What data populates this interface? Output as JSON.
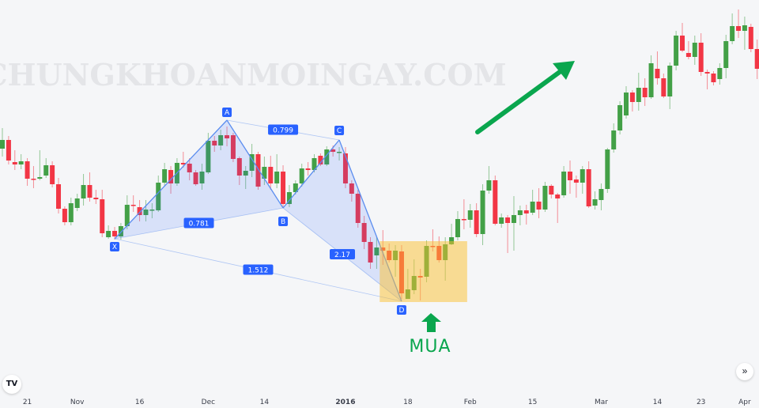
{
  "chart_data": {
    "type": "candlestick",
    "title": "",
    "watermark": "CHUNGKHOANMOINGAY.COM",
    "colors": {
      "up": "#43a047",
      "down": "#f23645",
      "pattern": "#5b8def",
      "pattern_fill": "#2962ff",
      "zone": "#fbc02d",
      "buy": "#0aa64e"
    },
    "x_ticks": [
      {
        "bar": 4,
        "label": "21"
      },
      {
        "bar": 12,
        "label": "Nov"
      },
      {
        "bar": 22,
        "label": "16"
      },
      {
        "bar": 33,
        "label": "Dec"
      },
      {
        "bar": 42,
        "label": "14"
      },
      {
        "bar": 55,
        "label": "2016",
        "bold": true
      },
      {
        "bar": 65,
        "label": "18"
      },
      {
        "bar": 75,
        "label": "Feb"
      },
      {
        "bar": 85,
        "label": "15"
      },
      {
        "bar": 96,
        "label": "Mar"
      },
      {
        "bar": 105,
        "label": "14"
      },
      {
        "bar": 112,
        "label": "23"
      },
      {
        "bar": 119,
        "label": "Apr"
      }
    ],
    "ohlc": [
      [
        312,
        338,
        302,
        323
      ],
      [
        323,
        328,
        292,
        297
      ],
      [
        295,
        310,
        285,
        292
      ],
      [
        292,
        305,
        286,
        296
      ],
      [
        296,
        300,
        265,
        274
      ],
      [
        274,
        290,
        262,
        273
      ],
      [
        274,
        310,
        272,
        276
      ],
      [
        278,
        300,
        275,
        291
      ],
      [
        291,
        296,
        263,
        267
      ],
      [
        267,
        275,
        230,
        236
      ],
      [
        236,
        239,
        215,
        219
      ],
      [
        219,
        250,
        215,
        243
      ],
      [
        237,
        255,
        233,
        249
      ],
      [
        249,
        280,
        240,
        266
      ],
      [
        266,
        282,
        245,
        250
      ],
      [
        250,
        260,
        242,
        248
      ],
      [
        248,
        260,
        200,
        205
      ],
      [
        200,
        215,
        198,
        208
      ],
      [
        208,
        213,
        197,
        201
      ],
      [
        201,
        218,
        197,
        214
      ],
      [
        214,
        253,
        210,
        241
      ],
      [
        241,
        253,
        232,
        240
      ],
      [
        238,
        247,
        220,
        228
      ],
      [
        228,
        247,
        220,
        235
      ],
      [
        235,
        243,
        224,
        235
      ],
      [
        234,
        278,
        232,
        269
      ],
      [
        269,
        294,
        265,
        286
      ],
      [
        285,
        290,
        255,
        268
      ],
      [
        268,
        300,
        265,
        294
      ],
      [
        294,
        308,
        288,
        292
      ],
      [
        293,
        300,
        272,
        282
      ],
      [
        282,
        285,
        265,
        267
      ],
      [
        268,
        293,
        260,
        283
      ],
      [
        282,
        332,
        280,
        322
      ],
      [
        322,
        328,
        308,
        316
      ],
      [
        316,
        336,
        310,
        329
      ],
      [
        329,
        340,
        315,
        325
      ],
      [
        329,
        332,
        295,
        299
      ],
      [
        300,
        302,
        266,
        278
      ],
      [
        278,
        290,
        261,
        284
      ],
      [
        284,
        318,
        276,
        305
      ],
      [
        305,
        308,
        260,
        264
      ],
      [
        274,
        302,
        266,
        289
      ],
      [
        289,
        303,
        260,
        268
      ],
      [
        268,
        305,
        262,
        283
      ],
      [
        283,
        291,
        237,
        242
      ],
      [
        242,
        266,
        238,
        257
      ],
      [
        257,
        272,
        254,
        268
      ],
      [
        268,
        293,
        264,
        287
      ],
      [
        287,
        295,
        278,
        285
      ],
      [
        285,
        305,
        282,
        300
      ],
      [
        303,
        306,
        290,
        292
      ],
      [
        292,
        315,
        290,
        311
      ],
      [
        311,
        316,
        302,
        308
      ],
      [
        308,
        314,
        297,
        308
      ],
      [
        306,
        314,
        262,
        268
      ],
      [
        268,
        272,
        245,
        255
      ],
      [
        255,
        260,
        212,
        218
      ],
      [
        218,
        227,
        185,
        194
      ],
      [
        194,
        200,
        160,
        168
      ],
      [
        177,
        200,
        160,
        187
      ],
      [
        187,
        209,
        165,
        183
      ],
      [
        183,
        192,
        168,
        171
      ],
      [
        171,
        190,
        150,
        183
      ],
      [
        182,
        190,
        122,
        129
      ],
      [
        122,
        160,
        122,
        134
      ],
      [
        133,
        172,
        128,
        151
      ],
      [
        151,
        160,
        120,
        149
      ],
      [
        150,
        196,
        143,
        189
      ],
      [
        189,
        210,
        182,
        188
      ],
      [
        189,
        201,
        168,
        171
      ],
      [
        171,
        200,
        145,
        191
      ],
      [
        191,
        217,
        190,
        200
      ],
      [
        200,
        233,
        196,
        223
      ],
      [
        223,
        248,
        210,
        222
      ],
      [
        222,
        242,
        212,
        234
      ],
      [
        234,
        243,
        200,
        204
      ],
      [
        204,
        267,
        190,
        259
      ],
      [
        259,
        290,
        255,
        272
      ],
      [
        272,
        278,
        215,
        217
      ],
      [
        217,
        230,
        212,
        225
      ],
      [
        225,
        228,
        180,
        218
      ],
      [
        218,
        252,
        183,
        228
      ],
      [
        228,
        240,
        215,
        234
      ],
      [
        234,
        241,
        216,
        230
      ],
      [
        231,
        260,
        228,
        245
      ],
      [
        245,
        262,
        224,
        235
      ],
      [
        235,
        270,
        232,
        265
      ],
      [
        265,
        267,
        249,
        254
      ],
      [
        254,
        256,
        218,
        249
      ],
      [
        253,
        290,
        250,
        283
      ],
      [
        283,
        297,
        255,
        272
      ],
      [
        273,
        278,
        250,
        269
      ],
      [
        269,
        290,
        255,
        286
      ],
      [
        286,
        296,
        237,
        239
      ],
      [
        240,
        258,
        235,
        248
      ],
      [
        247,
        268,
        234,
        261
      ],
      [
        261,
        313,
        256,
        311
      ],
      [
        311,
        344,
        307,
        335
      ],
      [
        335,
        372,
        330,
        367
      ],
      [
        354,
        391,
        350,
        383
      ],
      [
        383,
        386,
        359,
        371
      ],
      [
        371,
        408,
        360,
        389
      ],
      [
        389,
        401,
        366,
        377
      ],
      [
        377,
        430,
        375,
        420
      ],
      [
        413,
        435,
        393,
        401
      ],
      [
        401,
        407,
        376,
        378
      ],
      [
        378,
        421,
        362,
        417
      ],
      [
        417,
        461,
        411,
        455
      ],
      [
        455,
        471,
        434,
        436
      ],
      [
        433,
        448,
        425,
        428
      ],
      [
        428,
        455,
        418,
        446
      ],
      [
        446,
        458,
        404,
        409
      ],
      [
        409,
        412,
        387,
        407
      ],
      [
        407,
        410,
        392,
        396
      ],
      [
        400,
        420,
        393,
        414
      ],
      [
        414,
        456,
        401,
        448
      ],
      [
        448,
        483,
        444,
        467
      ],
      [
        467,
        488,
        452,
        461
      ],
      [
        461,
        479,
        437,
        468
      ],
      [
        466,
        470,
        434,
        438
      ],
      [
        438,
        450,
        400,
        413
      ]
    ],
    "pattern": {
      "points": [
        {
          "label": "X",
          "bar": 18,
          "price": 198
        },
        {
          "label": "A",
          "bar": 36,
          "price": 348
        },
        {
          "label": "B",
          "bar": 45,
          "price": 237
        },
        {
          "label": "C",
          "bar": 54,
          "price": 323
        },
        {
          "label": "D",
          "bar": 64,
          "price": 119
        }
      ],
      "ratios": [
        {
          "from": "X",
          "to": "B",
          "value": "0.781"
        },
        {
          "from": "A",
          "to": "C",
          "value": "0.799"
        },
        {
          "from": "B",
          "to": "D",
          "value": "2.17"
        },
        {
          "from": "X",
          "to": "D",
          "value": "1.512"
        }
      ]
    },
    "buy_zone": {
      "bar_start": 61,
      "bar_end": 74,
      "price_top": 195,
      "price_bottom": 118
    },
    "buy_label": "MUA",
    "trend_arrow": "up-right"
  },
  "ui": {
    "logo": "TV",
    "scroll_icon": "double-chevron-right-icon",
    "scroll_glyph": "»"
  }
}
